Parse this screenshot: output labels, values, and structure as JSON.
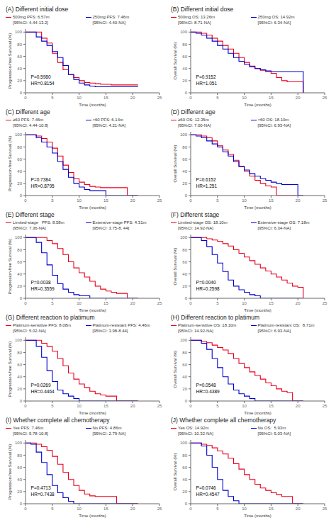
{
  "chart_data": [
    {
      "type": "line",
      "line_style": "step",
      "title": "(A) Different initial dose",
      "xlabel": "Time (months)",
      "ylabel": "Progression-free Survival (%)",
      "annotations": [
        "P=0.5980",
        "HR=0.8154"
      ],
      "x": [
        0,
        1,
        2,
        3,
        4,
        5,
        6,
        7,
        8,
        9,
        10,
        11,
        12,
        13,
        14,
        15,
        16,
        17,
        18,
        19,
        20,
        21
      ],
      "series": [
        {
          "name": "500mg PFS: 6.57m\n[95%CI: 4.44-13.2]",
          "color": "#e8001c",
          "values": [
            100,
            100,
            100,
            90,
            82,
            65,
            50,
            38,
            30,
            25,
            20,
            17,
            16,
            15,
            14,
            14,
            13,
            13,
            13,
            13,
            13,
            13
          ]
        },
        {
          "name": "250mg PFS: 7.46m\n[95%CI: 4.40-NA]",
          "color": "#0000cd",
          "values": [
            100,
            100,
            92,
            85,
            78,
            68,
            58,
            45,
            30,
            22,
            16,
            13,
            11,
            10,
            10,
            10,
            10,
            10,
            10,
            10,
            10,
            10
          ]
        }
      ],
      "xlim": [
        0,
        25
      ],
      "xticks": [
        0,
        5,
        10,
        15,
        20,
        25
      ],
      "ylim": [
        0,
        105
      ],
      "yticks": [
        0,
        20,
        40,
        60,
        80,
        100
      ],
      "grid": false,
      "legend": "top"
    },
    {
      "type": "line",
      "line_style": "step",
      "title": "(B) Different initial dose",
      "xlabel": "Time (months)",
      "ylabel": "Overall Survival (%)",
      "annotations": [
        "P=0.9152",
        "HR=1.051"
      ],
      "x": [
        0,
        1,
        2,
        3,
        4,
        5,
        6,
        7,
        8,
        9,
        10,
        11,
        12,
        13,
        14,
        15,
        16,
        17,
        18,
        19,
        20,
        21
      ],
      "series": [
        {
          "name": "500mg OS: 13.26m\n[95%CI: 8.71-NA]",
          "color": "#e8001c",
          "values": [
            100,
            100,
            98,
            95,
            90,
            85,
            78,
            72,
            65,
            58,
            50,
            44,
            40,
            37,
            35,
            32,
            25,
            20,
            18,
            18,
            18,
            0
          ]
        },
        {
          "name": "250mg OS: 14.92m\n[95%CI: 6.34-NA]",
          "color": "#0000cd",
          "values": [
            100,
            98,
            95,
            90,
            85,
            78,
            72,
            65,
            58,
            52,
            47,
            43,
            40,
            38,
            36,
            35,
            35,
            35,
            35,
            35,
            35,
            0
          ]
        }
      ],
      "xlim": [
        0,
        25
      ],
      "xticks": [
        0,
        5,
        10,
        15,
        20,
        25
      ],
      "ylim": [
        0,
        105
      ],
      "yticks": [
        0,
        20,
        40,
        60,
        80,
        100
      ],
      "grid": false,
      "legend": "top"
    },
    {
      "type": "line",
      "line_style": "step",
      "title": "(C) Different age",
      "xlabel": "Time (months)",
      "ylabel": "Progression-free Survival (%)",
      "annotations": [
        "P=0.7384",
        "HR=0.8795"
      ],
      "x": [
        0,
        1,
        2,
        3,
        4,
        5,
        6,
        7,
        8,
        9,
        10,
        11,
        12,
        13,
        14,
        15,
        16,
        17,
        18,
        19,
        20,
        21
      ],
      "series": [
        {
          "name": "≥60 PFS: 7.46m\n[95%CI: 4.44-10.8]",
          "color": "#e8001c",
          "values": [
            100,
            100,
            98,
            94,
            88,
            78,
            65,
            50,
            38,
            28,
            22,
            18,
            15,
            14,
            13,
            13,
            13,
            13,
            13,
            0,
            0,
            0
          ]
        },
        {
          "name": "<60 PFS: 6.14m\n[95%CI: 4.21-NA]",
          "color": "#0000cd",
          "values": [
            100,
            100,
            95,
            88,
            80,
            70,
            56,
            43,
            30,
            20,
            14,
            10,
            8,
            8,
            8,
            0,
            0,
            0,
            0,
            0,
            0,
            0
          ]
        }
      ],
      "xlim": [
        0,
        25
      ],
      "xticks": [
        0,
        5,
        10,
        15,
        20,
        25
      ],
      "ylim": [
        0,
        105
      ],
      "yticks": [
        0,
        20,
        40,
        60,
        80,
        100
      ],
      "grid": false,
      "legend": "top"
    },
    {
      "type": "line",
      "line_style": "step",
      "title": "(D) Different age",
      "xlabel": "Time (months)",
      "ylabel": "Overall Survival (%)",
      "annotations": [
        "P=0.6152",
        "HR=1.251"
      ],
      "x": [
        0,
        1,
        2,
        3,
        4,
        5,
        6,
        7,
        8,
        9,
        10,
        11,
        12,
        13,
        14,
        15,
        16,
        17,
        18,
        19,
        20,
        21
      ],
      "series": [
        {
          "name": "≥60 OS: 12.35m\n[95%CI: 7.00-NA]",
          "color": "#e8001c",
          "values": [
            100,
            100,
            98,
            95,
            90,
            82,
            75,
            68,
            58,
            48,
            40,
            32,
            25,
            20,
            16,
            14,
            0,
            0,
            0,
            0,
            0,
            0
          ]
        },
        {
          "name": "<60 OS: 18.10m\n[95%CI: 6.93-NA]",
          "color": "#0000cd",
          "values": [
            100,
            98,
            95,
            90,
            85,
            80,
            72,
            65,
            56,
            48,
            42,
            36,
            32,
            28,
            25,
            22,
            20,
            18,
            18,
            18,
            0,
            0
          ]
        }
      ],
      "xlim": [
        0,
        25
      ],
      "xticks": [
        0,
        5,
        10,
        15,
        20,
        25
      ],
      "ylim": [
        0,
        105
      ],
      "yticks": [
        0,
        20,
        40,
        60,
        80,
        100
      ],
      "grid": false,
      "legend": "top"
    },
    {
      "type": "line",
      "line_style": "step",
      "title": "(E) Different stage",
      "xlabel": "Time (months)",
      "ylabel": "Progression-free Survival (%)",
      "annotations": [
        "P=0.0038",
        "HR=0.3559"
      ],
      "x": [
        0,
        1,
        2,
        3,
        4,
        5,
        6,
        7,
        8,
        9,
        10,
        11,
        12,
        13,
        14,
        15,
        16,
        17,
        18,
        19,
        20,
        21
      ],
      "series": [
        {
          "name": "Limited-stage   PFS: 8.58m\n[95%CI: 7.36-NA]",
          "color": "#e8001c",
          "values": [
            100,
            100,
            100,
            100,
            95,
            90,
            82,
            72,
            60,
            50,
            42,
            35,
            28,
            20,
            15,
            12,
            10,
            8,
            8,
            0,
            0,
            0
          ]
        },
        {
          "name": "Extensive-stage PFS: 4.31m\n[95%CI: 3.75-8, 44]",
          "color": "#0000cd",
          "values": [
            100,
            100,
            92,
            75,
            55,
            38,
            24,
            15,
            10,
            6,
            4,
            4,
            0,
            0,
            0,
            0,
            0,
            0,
            0,
            0,
            0,
            0
          ]
        }
      ],
      "xlim": [
        0,
        25
      ],
      "xticks": [
        0,
        5,
        10,
        15,
        20,
        25
      ],
      "ylim": [
        0,
        105
      ],
      "yticks": [
        0,
        20,
        40,
        60,
        80,
        100
      ],
      "grid": false,
      "legend": "top"
    },
    {
      "type": "line",
      "line_style": "step",
      "title": "(F) Different stage",
      "xlabel": "Time (months)",
      "ylabel": "Overall Survival (%)",
      "annotations": [
        "P=0.0040",
        "HR=0.2598"
      ],
      "x": [
        0,
        1,
        2,
        3,
        4,
        5,
        6,
        7,
        8,
        9,
        10,
        11,
        12,
        13,
        14,
        15,
        16,
        17,
        18,
        19,
        20,
        21
      ],
      "series": [
        {
          "name": "Limited-stage OS: 18.10m\n[95%CI: 14.92-NA]",
          "color": "#e8001c",
          "values": [
            100,
            100,
            100,
            98,
            96,
            94,
            90,
            86,
            80,
            74,
            68,
            62,
            56,
            50,
            45,
            40,
            35,
            30,
            25,
            20,
            18,
            0
          ]
        },
        {
          "name": "Extensive-stage OS: 7.18m\n[95%CI: 6.34-NA]",
          "color": "#0000cd",
          "values": [
            100,
            100,
            95,
            85,
            72,
            58,
            44,
            30,
            20,
            14,
            10,
            6,
            4,
            0,
            0,
            0,
            0,
            0,
            0,
            0,
            0,
            0
          ]
        }
      ],
      "xlim": [
        0,
        25
      ],
      "xticks": [
        0,
        5,
        10,
        15,
        20,
        25
      ],
      "ylim": [
        0,
        105
      ],
      "yticks": [
        0,
        20,
        40,
        60,
        80,
        100
      ],
      "grid": false,
      "legend": "top"
    },
    {
      "type": "line",
      "line_style": "step",
      "title": "(G) Different reaction to platimum",
      "xlabel": "Time (months)",
      "ylabel": "Progression-free Survival (%)",
      "annotations": [
        "P=0.0269",
        "HR=0.4464"
      ],
      "x": [
        0,
        1,
        2,
        3,
        4,
        5,
        6,
        7,
        8,
        9,
        10,
        11,
        12,
        13,
        14,
        15,
        16,
        17,
        18,
        19,
        20,
        21
      ],
      "series": [
        {
          "name": "Platinum-sensitive PFS: 8.08m\n[95%CI: 5.02-NA]",
          "color": "#e8001c",
          "values": [
            100,
            100,
            100,
            95,
            90,
            82,
            70,
            58,
            46,
            36,
            28,
            22,
            16,
            12,
            10,
            8,
            8,
            0,
            0,
            0,
            0,
            0
          ]
        },
        {
          "name": "Platinum-resistant PFS: 4.46m\n[95%CI: 3.98-8.44]",
          "color": "#0000cd",
          "values": [
            100,
            100,
            90,
            72,
            50,
            32,
            18,
            12,
            8,
            4,
            0,
            0,
            0,
            0,
            0,
            0,
            0,
            0,
            0,
            0,
            0,
            0
          ]
        }
      ],
      "xlim": [
        0,
        25
      ],
      "xticks": [
        0,
        5,
        10,
        15,
        20,
        25
      ],
      "ylim": [
        0,
        105
      ],
      "yticks": [
        0,
        20,
        40,
        60,
        80,
        100
      ],
      "grid": false,
      "legend": "top"
    },
    {
      "type": "line",
      "line_style": "step",
      "title": "(H) Different reaction to platimum",
      "xlabel": "Time (months)",
      "ylabel": "Overall Survival (%)",
      "annotations": [
        "P=0.0548",
        "HR=0.4389"
      ],
      "x": [
        0,
        1,
        2,
        3,
        4,
        5,
        6,
        7,
        8,
        9,
        10,
        11,
        12,
        13,
        14,
        15,
        16,
        17,
        18,
        19,
        20,
        21
      ],
      "series": [
        {
          "name": "Platinum-sensitive OS: 18.10m\n[95%CI: 14.92-NA]",
          "color": "#e8001c",
          "values": [
            100,
            100,
            98,
            96,
            92,
            88,
            84,
            78,
            70,
            62,
            55,
            48,
            42,
            36,
            30,
            25,
            20,
            16,
            14,
            0,
            0,
            0
          ]
        },
        {
          "name": "Platinum-resistant OS:  8.71m\n[95%CI: 6.93-NA]",
          "color": "#0000cd",
          "values": [
            100,
            100,
            95,
            85,
            70,
            55,
            40,
            28,
            18,
            12,
            8,
            4,
            0,
            0,
            0,
            0,
            0,
            0,
            0,
            0,
            0,
            0
          ]
        }
      ],
      "xlim": [
        0,
        25
      ],
      "xticks": [
        0,
        5,
        10,
        15,
        20,
        25
      ],
      "ylim": [
        0,
        105
      ],
      "yticks": [
        0,
        20,
        40,
        60,
        80,
        100
      ],
      "grid": false,
      "legend": "top"
    },
    {
      "type": "line",
      "line_style": "step",
      "title": "(I) Whether complete all chemotherapy",
      "xlabel": "Time (months)",
      "ylabel": "Progression-free Survival (%)",
      "annotations": [
        "P=0.4713",
        "HR=0.7438"
      ],
      "x": [
        0,
        1,
        2,
        3,
        4,
        5,
        6,
        7,
        8,
        9,
        10,
        11,
        12,
        13,
        14,
        15,
        16,
        17,
        18,
        19,
        20,
        21
      ],
      "series": [
        {
          "name": "Yes PFS: 7.46m\n[95%CI: 5.78-10.8]",
          "color": "#e8001c",
          "values": [
            100,
            100,
            98,
            94,
            88,
            78,
            65,
            52,
            40,
            30,
            22,
            16,
            13,
            12,
            12,
            12,
            12,
            0,
            0,
            0,
            0,
            0
          ]
        },
        {
          "name": "No PFS: 4.86m\n[95%CI: 2.79-NA]",
          "color": "#0000cd",
          "values": [
            100,
            98,
            85,
            68,
            48,
            30,
            18,
            10,
            4,
            0,
            0,
            0,
            0,
            0,
            0,
            0,
            0,
            0,
            0,
            0,
            0,
            0
          ]
        }
      ],
      "xlim": [
        0,
        25
      ],
      "xticks": [
        0,
        5,
        10,
        15,
        20,
        25
      ],
      "ylim": [
        0,
        105
      ],
      "yticks": [
        0,
        20,
        40,
        60,
        80,
        100
      ],
      "grid": false,
      "legend": "top"
    },
    {
      "type": "line",
      "line_style": "step",
      "title": "(J) Whether complete all chemotherapy",
      "xlabel": "Time (months)",
      "ylabel": "Overall Survival (%)",
      "annotations": [
        "P=0.0746",
        "HR=0.4547"
      ],
      "x": [
        0,
        1,
        2,
        3,
        4,
        5,
        6,
        7,
        8,
        9,
        10,
        11,
        12,
        13,
        14,
        15,
        16,
        17,
        18,
        19,
        20,
        21
      ],
      "series": [
        {
          "name": "Yes OS: 14.92m\n[95%CI: 10.32-NA]",
          "color": "#e8001c",
          "values": [
            100,
            100,
            98,
            96,
            92,
            87,
            82,
            75,
            66,
            57,
            48,
            40,
            32,
            26,
            22,
            18,
            15,
            12,
            12,
            0,
            0,
            0
          ]
        },
        {
          "name": "No OS:  5.93m\n[95%CI: 5.03-NA]",
          "color": "#0000cd",
          "values": [
            100,
            100,
            95,
            80,
            60,
            40,
            22,
            12,
            5,
            0,
            0,
            0,
            0,
            0,
            0,
            0,
            0,
            0,
            0,
            0,
            0,
            0
          ]
        }
      ],
      "xlim": [
        0,
        25
      ],
      "xticks": [
        0,
        5,
        10,
        15,
        20,
        25
      ],
      "ylim": [
        0,
        105
      ],
      "yticks": [
        0,
        20,
        40,
        60,
        80,
        100
      ],
      "grid": false,
      "legend": "top"
    }
  ]
}
